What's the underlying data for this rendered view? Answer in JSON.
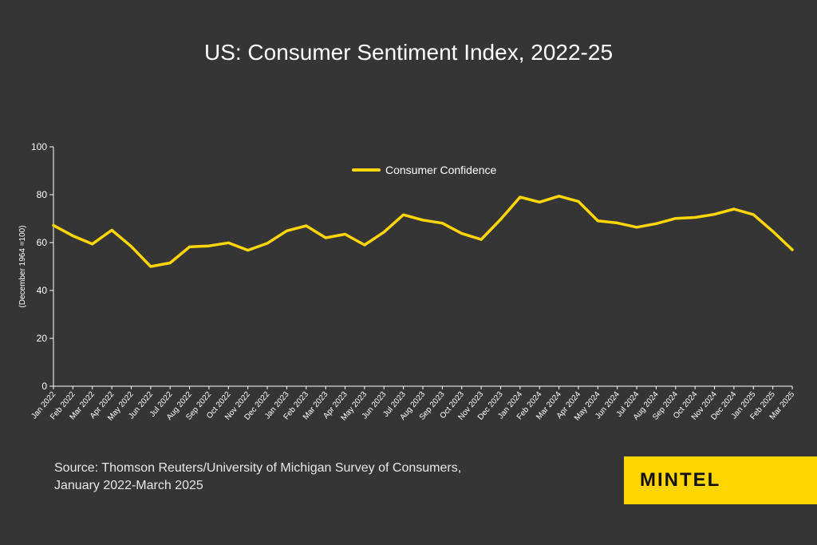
{
  "title": "US: Consumer Sentiment Index, 2022-25",
  "source": {
    "line1": "Source: Thomson Reuters/University of Michigan Survey of Consumers,",
    "line2": "January 2022-March 2025"
  },
  "logo": "MINTEL",
  "colors": {
    "background": "#353535",
    "line": "#ffd600",
    "axis": "#ffffff"
  },
  "chart_data": {
    "type": "line",
    "title": "US: Consumer Sentiment Index, 2022-25",
    "xlabel": "",
    "ylabel": "(December 1964 =100)",
    "ylim": [
      0,
      100
    ],
    "yticks": [
      0,
      20,
      40,
      60,
      80,
      100
    ],
    "grid": false,
    "legend": "top-center",
    "categories": [
      "Jan 2022",
      "Feb 2022",
      "Mar 2022",
      "Apr 2022",
      "May 2022",
      "Jun 2022",
      "Jul 2022",
      "Aug 2022",
      "Sep 2022",
      "Oct 2022",
      "Nov 2022",
      "Dec 2022",
      "Jan 2023",
      "Feb 2023",
      "Mar 2023",
      "Apr 2023",
      "May 2023",
      "Jun 2023",
      "Jul 2023",
      "Aug 2023",
      "Sep 2023",
      "Oct 2023",
      "Nov 2023",
      "Dec 2023",
      "Jan 2024",
      "Feb 2024",
      "Mar 2024",
      "Apr 2024",
      "May 2024",
      "Jun 2024",
      "Jul 2024",
      "Aug 2024",
      "Sep 2024",
      "Oct 2024",
      "Nov 2024",
      "Dec 2024",
      "Jan 2025",
      "Feb 2025",
      "Mar 2025"
    ],
    "series": [
      {
        "name": "Consumer Confidence",
        "values": [
          67.2,
          62.8,
          59.4,
          65.2,
          58.4,
          50.0,
          51.5,
          58.2,
          58.6,
          59.9,
          56.8,
          59.7,
          64.9,
          67.0,
          62.0,
          63.5,
          59.0,
          64.4,
          71.6,
          69.4,
          68.1,
          63.8,
          61.3,
          69.7,
          79.0,
          76.9,
          79.4,
          77.2,
          69.1,
          68.2,
          66.4,
          67.9,
          70.1,
          70.5,
          71.8,
          74.0,
          71.7,
          64.7,
          57.0
        ]
      }
    ]
  }
}
